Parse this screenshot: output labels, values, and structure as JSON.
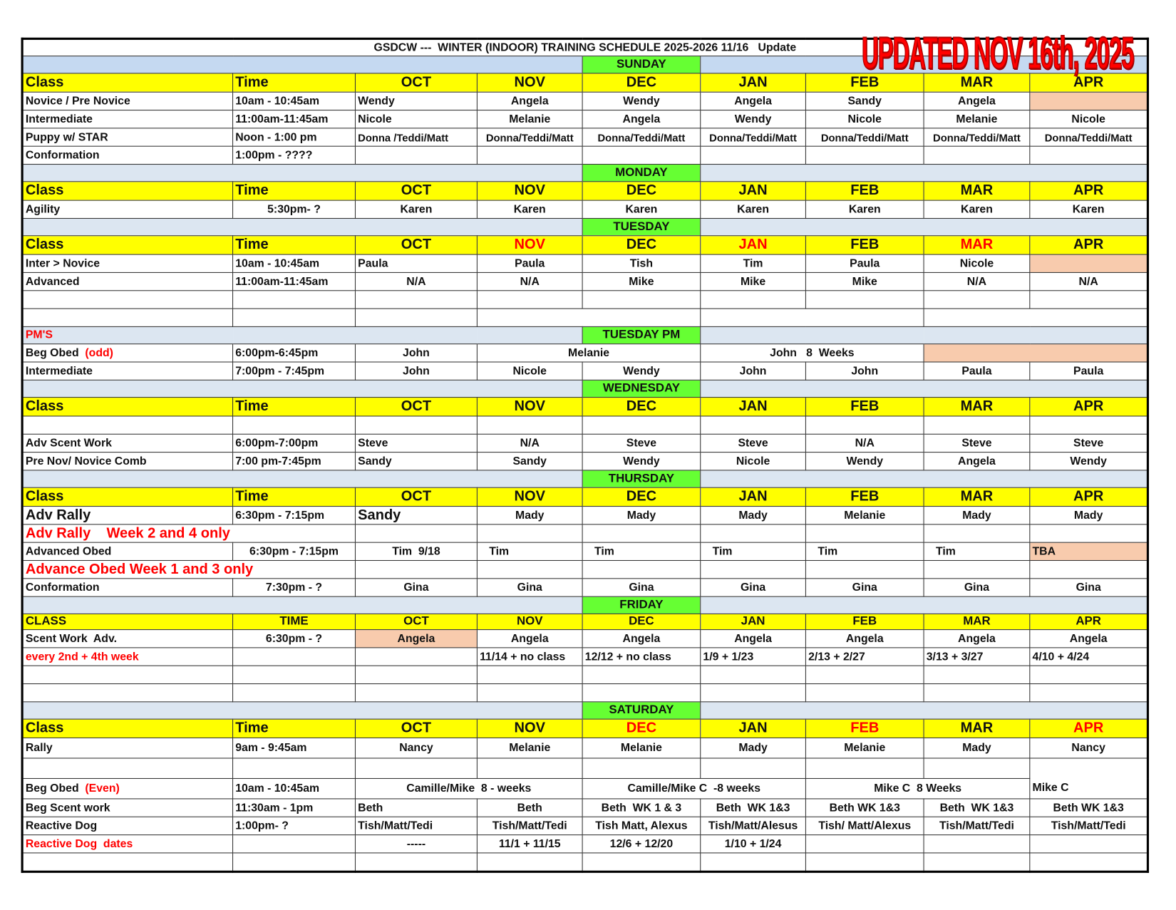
{
  "title": "GSDCW ---  WINTER (INDOOR) TRAINING SCHEDULE 2025-2026 11/16   Update",
  "stamp": "UPDATED NOV 16th, 2025",
  "colors": {
    "header_yellow": "#ffff00",
    "day_green": "#66ff33",
    "band_blue": "#dce6f1",
    "highlight_peach": "#f8cbad",
    "alert_red": "#ff0000"
  },
  "sections": [
    {
      "day": "SUNDAY",
      "header": [
        {
          "text": "Class"
        },
        {
          "text": "Time"
        },
        {
          "text": "OCT"
        },
        {
          "text": "NOV"
        },
        {
          "text": "DEC"
        },
        {
          "text": "JAN"
        },
        {
          "text": "FEB"
        },
        {
          "text": "MAR"
        },
        {
          "text": "APR"
        }
      ],
      "rows": [
        {
          "cells": [
            "Novice / Pre Novice",
            "10am - 10:45am",
            {
              "text": "Wendy",
              "align": "left"
            },
            "Angela",
            "Wendy",
            "Angela",
            "Sandy",
            "Angela",
            {
              "text": "",
              "peach": true
            }
          ]
        },
        {
          "cells": [
            "Intermediate",
            "11:00am-11:45am",
            {
              "text": "Nicole",
              "align": "left"
            },
            "Melanie",
            "Angela",
            "Wendy",
            "Nicole",
            "Melanie",
            "Nicole"
          ]
        },
        {
          "cells": [
            "Puppy w/ STAR",
            "Noon - 1:00 pm",
            {
              "text": "Donna /Teddi/Matt",
              "align": "left",
              "small": true
            },
            {
              "text": "Donna/Teddi/Matt",
              "small": true
            },
            {
              "text": "Donna/Teddi/Matt",
              "small": true
            },
            {
              "text": "Donna/Teddi/Matt",
              "small": true
            },
            {
              "text": "Donna/Teddi/Matt",
              "small": true
            },
            {
              "text": "Donna/Teddi/Matt",
              "small": true
            },
            {
              "text": "Donna/Teddi/Matt",
              "small": true
            }
          ]
        },
        {
          "cells": [
            "Conformation",
            "1:00pm - ????",
            "",
            "",
            "",
            "",
            "",
            "",
            ""
          ]
        }
      ]
    },
    {
      "day": "MONDAY",
      "header": [
        {
          "text": "Class"
        },
        {
          "text": "Time"
        },
        {
          "text": "OCT"
        },
        {
          "text": "NOV"
        },
        {
          "text": "DEC"
        },
        {
          "text": "JAN"
        },
        {
          "text": "FEB"
        },
        {
          "text": "MAR"
        },
        {
          "text": "APR"
        }
      ],
      "rows": [
        {
          "cells": [
            "Agility",
            {
              "text": "5:30pm- ?",
              "align": "center"
            },
            "Karen",
            "Karen",
            "Karen",
            "Karen",
            "Karen",
            "Karen",
            "Karen"
          ]
        }
      ]
    },
    {
      "day": "TUESDAY",
      "header": [
        {
          "text": "Class"
        },
        {
          "text": "Time"
        },
        {
          "text": "OCT"
        },
        {
          "text": "NOV",
          "red": true
        },
        {
          "text": "DEC"
        },
        {
          "text": "JAN",
          "red": true
        },
        {
          "text": "FEB"
        },
        {
          "text": "MAR",
          "red": true
        },
        {
          "text": "APR"
        }
      ],
      "rows": [
        {
          "cells": [
            "Inter > Novice",
            "10am - 10:45am",
            {
              "text": "Paula",
              "align": "left"
            },
            "Paula",
            "Tish",
            "Tim",
            "Paula",
            "Nicole",
            {
              "text": "",
              "peach": true
            }
          ]
        },
        {
          "cells": [
            "Advanced",
            "11:00am-11:45am",
            "N/A",
            "N/A",
            "Mike",
            "Mike",
            "Mike",
            "N/A",
            "N/A"
          ]
        },
        {
          "cells": [
            "",
            "",
            "",
            "",
            "",
            "",
            "",
            "",
            ""
          ]
        },
        {
          "cells": [
            "",
            "",
            "",
            {
              "text": "",
              "span": 2
            },
            {
              "text": "",
              "span": 2
            },
            {
              "text": "",
              "span": 2
            }
          ]
        },
        {
          "band": true,
          "cells": [
            {
              "text": "PM'S",
              "red": true,
              "align": "left",
              "blue": true
            },
            {
              "text": "",
              "blue": true
            },
            {
              "text": "",
              "blue": true
            },
            {
              "text": "",
              "blue": true
            },
            {
              "text": "TUESDAY PM",
              "green": true
            },
            {
              "text": "",
              "span": 2,
              "blue": true
            },
            {
              "text": "",
              "span": 2,
              "blue": true
            }
          ]
        },
        {
          "cells": [
            {
              "text": "Beg Obed  ",
              "note": "(odd)"
            },
            "6:00pm-6:45pm",
            {
              "text": "John"
            },
            {
              "text": "Melanie",
              "span": 2
            },
            {
              "text": "John   8  Weeks",
              "span": 2
            },
            {
              "text": "",
              "span": 2,
              "peach": true
            }
          ]
        },
        {
          "cells": [
            "Intermediate",
            "7:00pm - 7:45pm",
            "John",
            "Nicole",
            "Wendy",
            "John",
            "John",
            "Paula",
            "Paula"
          ]
        }
      ]
    },
    {
      "day": "WEDNESDAY",
      "header": [
        {
          "text": "Class"
        },
        {
          "text": "Time"
        },
        {
          "text": "OCT"
        },
        {
          "text": "NOV"
        },
        {
          "text": "DEC"
        },
        {
          "text": "JAN"
        },
        {
          "text": "FEB"
        },
        {
          "text": "MAR"
        },
        {
          "text": "APR"
        }
      ],
      "rows": [
        {
          "cells": [
            "",
            "",
            "",
            "",
            "",
            "",
            "",
            "",
            ""
          ]
        },
        {
          "cells": [
            "Adv Scent Work",
            "6:00pm-7:00pm",
            {
              "text": "Steve",
              "align": "left"
            },
            "N/A",
            "Steve",
            "Steve",
            "N/A",
            "Steve",
            "Steve"
          ]
        },
        {
          "cells": [
            "Pre Nov/ Novice Comb",
            "7:00 pm-7:45pm",
            {
              "text": "Sandy",
              "align": "left"
            },
            "Sandy",
            "Wendy",
            "Nicole",
            "Wendy",
            "Angela",
            "Wendy"
          ]
        }
      ]
    },
    {
      "day": "THURSDAY",
      "header": [
        {
          "text": "Class"
        },
        {
          "text": "Time"
        },
        {
          "text": "OCT"
        },
        {
          "text": "NOV"
        },
        {
          "text": "DEC"
        },
        {
          "text": "JAN"
        },
        {
          "text": "FEB"
        },
        {
          "text": "MAR"
        },
        {
          "text": "APR"
        }
      ],
      "rows": [
        {
          "cells": [
            {
              "text": "Adv Rally",
              "big": true
            },
            "6:30pm - 7:15pm",
            {
              "text": "Sandy",
              "align": "left",
              "big": true
            },
            "Mady",
            "Mady",
            "Mady",
            "Melanie",
            "Mady",
            "Mady"
          ]
        },
        {
          "cells": [
            {
              "text": "Adv Rally    Week 2 and 4 only",
              "span": 2,
              "red": true,
              "big": true
            },
            "",
            "",
            "",
            "",
            "",
            "",
            ""
          ]
        },
        {
          "cells": [
            "Advanced Obed",
            {
              "text": "6:30pm - 7:15pm",
              "align": "center"
            },
            "Tim  9/18",
            {
              "text": "   Tim",
              "align": "left"
            },
            {
              "text": "   Tim",
              "align": "left"
            },
            {
              "text": "   Tim",
              "align": "left"
            },
            {
              "text": "   Tim",
              "align": "left"
            },
            {
              "text": "   Tim",
              "align": "left"
            },
            {
              "text": "TBA",
              "align": "left",
              "peach": true
            }
          ]
        },
        {
          "cells": [
            {
              "text": "Advance Obed Week 1 and 3 only",
              "span": 2,
              "red": true,
              "big": true
            },
            "",
            "",
            "",
            "",
            "",
            "",
            ""
          ]
        },
        {
          "cells": [
            "Conformation",
            {
              "text": "7:30pm - ?",
              "align": "center"
            },
            "Gina",
            "Gina",
            "Gina",
            "Gina",
            "Gina",
            "Gina",
            "Gina"
          ]
        }
      ]
    },
    {
      "day": "FRIDAY",
      "small_header": true,
      "header": [
        {
          "text": "CLASS"
        },
        {
          "text": "TIME",
          "align": "center"
        },
        {
          "text": "OCT"
        },
        {
          "text": "NOV"
        },
        {
          "text": "DEC"
        },
        {
          "text": "JAN"
        },
        {
          "text": "FEB"
        },
        {
          "text": "MAR"
        },
        {
          "text": "APR"
        }
      ],
      "rows": [
        {
          "cells": [
            "Scent Work  Adv.",
            {
              "text": "6:30pm - ?",
              "align": "center"
            },
            {
              "text": "Angela",
              "peach": true
            },
            "Angela",
            "Angela",
            "Angela",
            "Angela",
            "Angela",
            "Angela"
          ]
        },
        {
          "cells": [
            {
              "text": "every 2nd + 4th week",
              "red": true
            },
            "",
            "",
            {
              "text": "11/14 + no class",
              "align": "left"
            },
            {
              "text": "12/12 + no class",
              "align": "left"
            },
            {
              "text": "1/9 + 1/23",
              "align": "left"
            },
            {
              "text": "2/13 + 2/27",
              "align": "left"
            },
            {
              "text": "3/13 + 3/27",
              "align": "left"
            },
            {
              "text": "4/10 + 4/24",
              "align": "left"
            }
          ]
        },
        {
          "cells": [
            "",
            "",
            "",
            "",
            "",
            "",
            "",
            "",
            ""
          ]
        },
        {
          "cells": [
            "",
            "",
            "",
            "",
            "",
            "",
            "",
            "",
            ""
          ]
        }
      ]
    },
    {
      "day": "SATURDAY",
      "header": [
        {
          "text": "Class"
        },
        {
          "text": "Time"
        },
        {
          "text": "OCT"
        },
        {
          "text": "NOV"
        },
        {
          "text": "DEC",
          "red": true
        },
        {
          "text": "JAN"
        },
        {
          "text": "FEB",
          "red": true
        },
        {
          "text": "MAR"
        },
        {
          "text": "APR",
          "red": true
        }
      ],
      "rows": [
        {
          "tall": true,
          "cells": [
            "Rally",
            "9am - 9:45am",
            "Nancy",
            "Melanie",
            "Melanie",
            "Mady",
            "Melanie",
            "Mady",
            "Nancy"
          ]
        },
        {
          "tall": true,
          "cells": [
            "",
            "",
            "",
            "",
            "",
            "",
            "",
            "",
            {
              "text": "Mike C",
              "align": "left",
              "rowspan": 2,
              "bottom": true
            }
          ]
        },
        {
          "tall": true,
          "cells": [
            {
              "text": "Beg Obed  ",
              "note": "(Even)"
            },
            "10am - 10:45am",
            {
              "text": "Camille/Mike  8 - weeks",
              "span": 2
            },
            {
              "text": "Camille/Mike C  -8 weeks",
              "span": 2
            },
            {
              "text": "Mike C  8 Weeks",
              "span": 2
            }
          ]
        },
        {
          "cells": [
            "Beg Scent work",
            "11:30am - 1pm",
            {
              "text": "Beth",
              "align": "left"
            },
            "Beth",
            "Beth  WK 1 & 3",
            "Beth  WK 1&3",
            "Beth WK 1&3",
            "Beth  WK 1&3",
            "Beth WK 1&3"
          ]
        },
        {
          "cells": [
            "Reactive Dog",
            "1:00pm- ?",
            {
              "text": "Tish/Matt/Tedi",
              "align": "left"
            },
            "Tish/Matt/Tedi",
            "Tish Matt, Alexus",
            "Tish/Matt/Alesus",
            "Tish/ Matt/Alexus",
            "Tish/Matt/Tedi",
            "Tish/Matt/Tedi"
          ]
        },
        {
          "cells": [
            {
              "text": "Reactive Dog  dates",
              "red": true
            },
            "",
            "-----",
            "11/1 + 11/15",
            "12/6 + 12/20",
            "1/10 + 1/24",
            "",
            "",
            ""
          ]
        },
        {
          "cells": [
            "",
            "",
            "",
            "",
            "",
            "",
            "",
            "",
            ""
          ]
        }
      ]
    }
  ]
}
